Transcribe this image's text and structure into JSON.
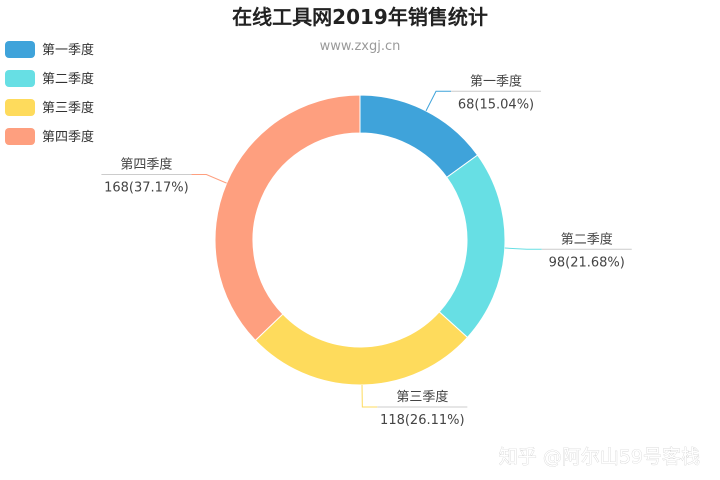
{
  "title": "在线工具网2019年销售统计",
  "subtitle": "www.zxgj.cn",
  "watermark": "知乎 @阿尔山59号客栈",
  "chart_data": {
    "type": "pie",
    "title": "在线工具网2019年销售统计",
    "subtitle": "www.zxgj.cn",
    "legend_position": "top-left",
    "donut": true,
    "slices": [
      {
        "name": "第一季度",
        "value": 68,
        "label": "68(15.04%)",
        "color": "#3fa3da"
      },
      {
        "name": "第二季度",
        "value": 98,
        "label": "98(21.68%)",
        "color": "#67dfe4"
      },
      {
        "name": "第三季度",
        "value": 118,
        "label": "118(26.11%)",
        "color": "#fedb5c"
      },
      {
        "name": "第四季度",
        "value": 168,
        "label": "168(37.17%)",
        "color": "#fe9f7f"
      }
    ]
  }
}
